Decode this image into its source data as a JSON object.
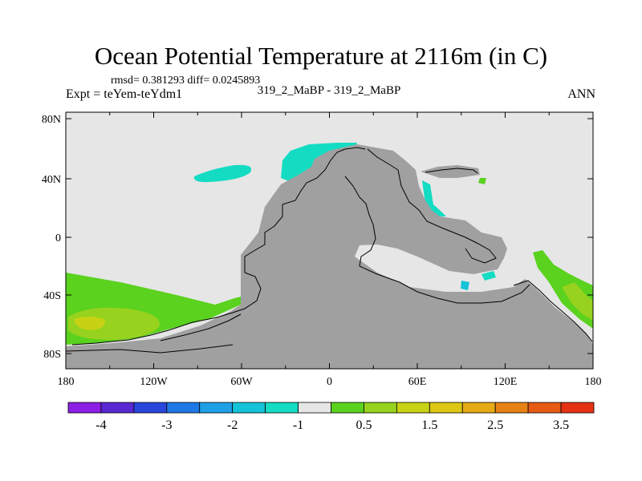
{
  "title": "Ocean Potential Temperature at 2116m (in C)",
  "stats": "rmsd= 0.381293 diff= 0.0245893",
  "experiment": "Expt = teYem-teYdm1",
  "case": "319_2_MaBP - 319_2_MaBP",
  "season": "ANN",
  "map": {
    "lon_labels": [
      "180",
      "120W",
      "60W",
      "0",
      "60E",
      "120E",
      "180"
    ],
    "lat_labels": [
      "80N",
      "40N",
      "0",
      "40S",
      "80S"
    ]
  },
  "colorbar": {
    "colors": [
      "#8c1ee6",
      "#5a28d2",
      "#2846dc",
      "#1e78e6",
      "#1ea0e6",
      "#14c3d7",
      "#14dcc3",
      "#e6e6e6",
      "#5ad21e",
      "#96d21e",
      "#c8d214",
      "#dcc814",
      "#e6aa14",
      "#e68214",
      "#e65a14",
      "#e63214"
    ],
    "labels": [
      "-4",
      "-3",
      "-2",
      "-1",
      "0.5",
      "1.5",
      "2.5",
      "3.5"
    ]
  },
  "colors": {
    "land": "#a0a0a0",
    "no_change": "#e6e6e6",
    "cyan": "#14dcc3",
    "light_blue": "#14c3d7",
    "green": "#5ad21e",
    "yellow_green": "#96d21e",
    "yellow": "#c8d214"
  }
}
